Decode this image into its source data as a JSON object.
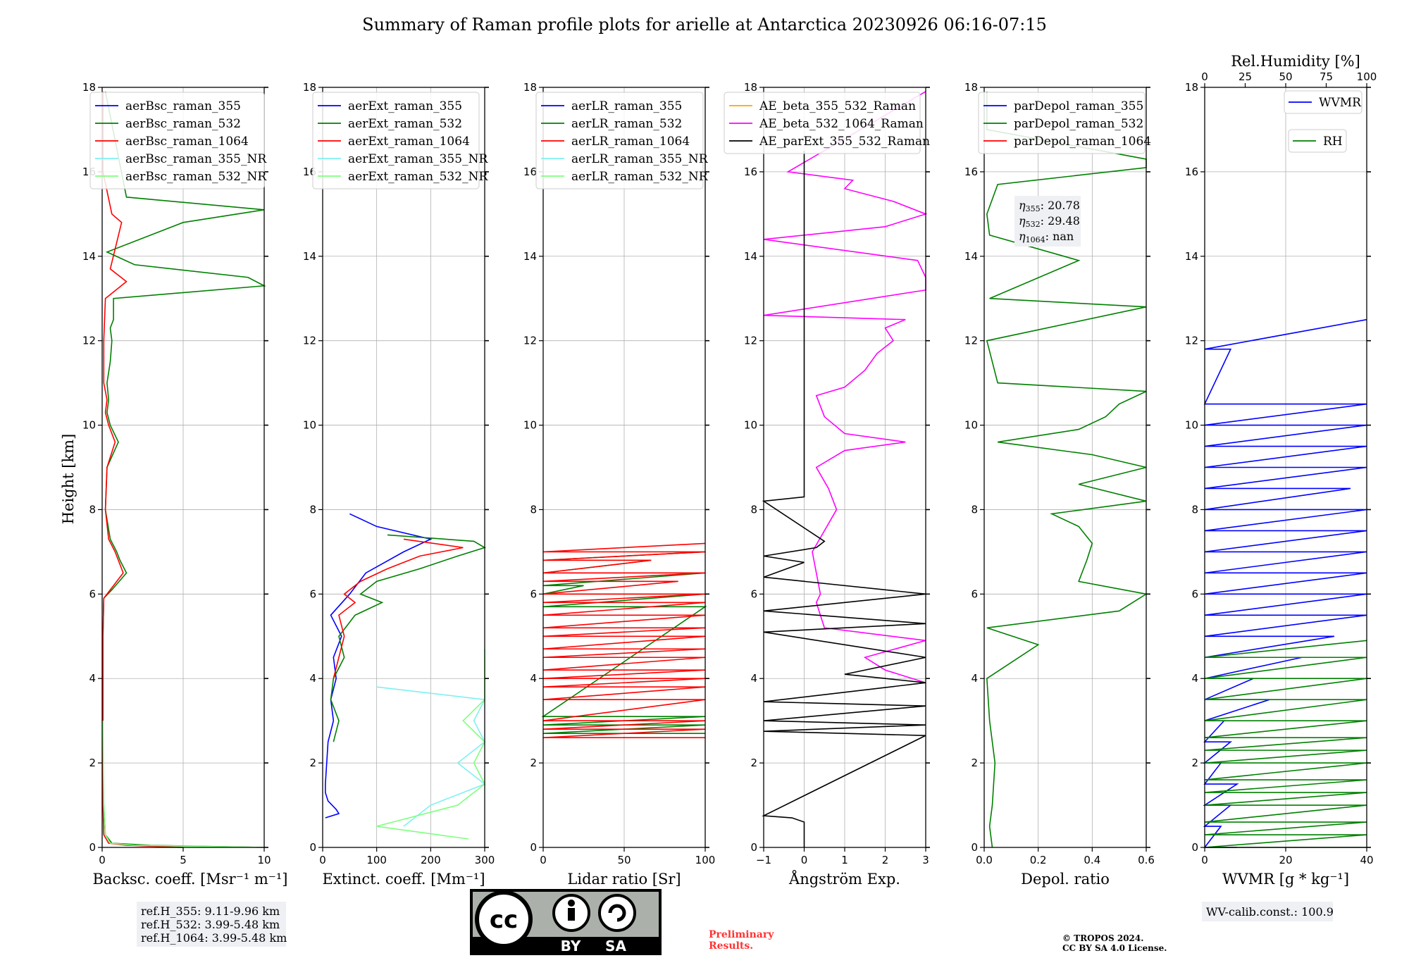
{
  "title": "Summary of Raman profile plots for arielle at Antarctica 20230926 06:16-07:15",
  "y_axis_label": "Height [km]",
  "colors": {
    "blue": "#0000ff",
    "green": "#008000",
    "red": "#ff0000",
    "cyan": "#7ff0f0",
    "lightgreen": "#7fff7f",
    "orange": "#ffa500",
    "magenta": "#ff00ff",
    "black": "#000000"
  },
  "chart_data": [
    {
      "type": "line",
      "xlabel": "Backsc. coeff. [Msr⁻¹ m⁻¹]",
      "xlim": [
        0,
        10
      ],
      "ylim": [
        0,
        18
      ],
      "xticks": [
        "0",
        "5",
        "10"
      ],
      "series": [
        {
          "name": "aerBsc_raman_355",
          "color": "#0000ff",
          "y": [],
          "x": []
        },
        {
          "name": "aerBsc_raman_532",
          "color": "#008000",
          "y": [
            0,
            0.05,
            0.1,
            0.3,
            1,
            2,
            3,
            4,
            5,
            5.9,
            6.1,
            6.5,
            6.8,
            7,
            7.3,
            8,
            9,
            9.6,
            10,
            10.3,
            10.6,
            11,
            11.5,
            12,
            12.3,
            12.5,
            13,
            13.3,
            13.5,
            13.8,
            14.1,
            14.8,
            15.1,
            15.4,
            17.9
          ],
          "x": [
            10,
            3,
            0.6,
            0.2,
            0.1,
            0.05,
            0.05,
            0.05,
            0.05,
            0.1,
            0.6,
            1.5,
            1.1,
            0.9,
            0.5,
            0.2,
            0.3,
            1,
            0.5,
            0.3,
            0.4,
            0.3,
            0.5,
            0.6,
            0.5,
            0.7,
            0.7,
            10,
            9,
            2,
            0.3,
            5,
            10,
            1.5,
            0.2
          ]
        },
        {
          "name": "aerBsc_raman_1064",
          "color": "#ff0000",
          "y": [
            0,
            0.05,
            0.1,
            0.3,
            1,
            2,
            3,
            4,
            5,
            5.9,
            6.1,
            6.5,
            6.8,
            7,
            7.3,
            8,
            9,
            9.6,
            10,
            10.3,
            10.6,
            11,
            12,
            13,
            13.4,
            13.7,
            14.8,
            15,
            16,
            17.9
          ],
          "x": [
            5,
            1.5,
            0.4,
            0.1,
            0.05,
            0.05,
            0.05,
            0.05,
            0.05,
            0.1,
            0.5,
            1.3,
            1,
            0.8,
            0.4,
            0.2,
            0.3,
            0.8,
            0.4,
            0.2,
            0.3,
            0.1,
            0.1,
            0.2,
            1.5,
            0.5,
            1.2,
            0.6,
            0.05,
            0.05
          ]
        },
        {
          "name": "aerBsc_raman_355_NR",
          "color": "#7ff0f0",
          "y": [],
          "x": []
        },
        {
          "name": "aerBsc_raman_532_NR",
          "color": "#7fff7f",
          "y": [
            0,
            0.05,
            0.1,
            0.3,
            1,
            3
          ],
          "x": [
            10,
            2,
            0.5,
            0.2,
            0.1,
            0.05
          ]
        }
      ]
    },
    {
      "type": "line",
      "xlabel": "Extinct. coeff. [Mm⁻¹]",
      "xlim": [
        0,
        300
      ],
      "ylim": [
        0,
        18
      ],
      "xticks": [
        "0",
        "100",
        "200",
        "300"
      ],
      "series": [
        {
          "name": "aerExt_raman_355",
          "color": "#0000ff",
          "y": [
            0.7,
            0.8,
            0.9,
            1.1,
            1.3,
            1.5,
            2.5,
            3,
            3.5,
            4,
            4.5,
            5,
            5.5,
            6,
            6.5,
            7,
            7.3,
            7.6,
            7.9
          ],
          "x": [
            5,
            30,
            25,
            10,
            5,
            5,
            10,
            20,
            15,
            25,
            20,
            35,
            15,
            50,
            80,
            150,
            200,
            100,
            50
          ]
        },
        {
          "name": "aerExt_raman_532",
          "color": "#008000",
          "y": [
            2.5,
            3,
            3.5,
            4,
            4.5,
            5,
            5.5,
            5.8,
            6,
            6.3,
            6.6,
            6.9,
            7.1,
            7.25,
            7.4
          ],
          "x": [
            20,
            30,
            15,
            20,
            40,
            30,
            60,
            110,
            70,
            100,
            180,
            250,
            300,
            280,
            120
          ]
        },
        {
          "name": "aerExt_raman_1064",
          "color": "#ff0000",
          "y": [
            4,
            4.5,
            5,
            5.5,
            5.8,
            6,
            6.3,
            6.6,
            6.9,
            7.1,
            7.3
          ],
          "x": [
            20,
            30,
            40,
            30,
            60,
            40,
            70,
            120,
            180,
            260,
            150
          ]
        },
        {
          "name": "aerExt_raman_355_NR",
          "color": "#7ff0f0",
          "y": [
            0.5,
            1,
            1.5,
            2,
            2.5,
            3,
            3.5,
            3.8
          ],
          "x": [
            150,
            200,
            300,
            250,
            300,
            280,
            300,
            100
          ]
        },
        {
          "name": "aerExt_raman_532_NR",
          "color": "#7fff7f",
          "y": [
            0.2,
            0.5,
            1,
            1.5,
            2,
            2.5,
            3,
            3.5,
            4.2,
            4.7
          ],
          "x": [
            270,
            100,
            250,
            300,
            280,
            300,
            260,
            300,
            300,
            300
          ]
        }
      ]
    },
    {
      "type": "line",
      "xlabel": "Lidar ratio [Sr]",
      "xlim": [
        0,
        120
      ],
      "ylim": [
        0,
        18
      ],
      "xticks": [
        "0",
        "50",
        "100"
      ],
      "series": [
        {
          "name": "aerLR_raman_355",
          "color": "#0000ff",
          "y": [],
          "x": []
        },
        {
          "name": "aerLR_raman_532",
          "color": "#008000",
          "y": [
            2.7,
            2.9,
            3.1,
            5.7,
            6,
            6.2,
            6.5,
            6.8,
            7
          ],
          "x": [
            120,
            120,
            120,
            120,
            120,
            30,
            120,
            80,
            120
          ]
        },
        {
          "name": "aerLR_raman_1064",
          "color": "#ff0000",
          "y": [
            2.6,
            2.8,
            3,
            3.5,
            3.8,
            4,
            4.2,
            4.5,
            4.7,
            5,
            5.2,
            5.5,
            5.8,
            6,
            6.3,
            6.5,
            6.8,
            7,
            7.2
          ],
          "x": [
            120,
            120,
            120,
            120,
            120,
            120,
            120,
            120,
            120,
            120,
            120,
            120,
            120,
            120,
            100,
            120,
            80,
            120,
            120
          ]
        },
        {
          "name": "aerLR_raman_355_NR",
          "color": "#7ff0f0",
          "y": [],
          "x": []
        },
        {
          "name": "aerLR_raman_532_NR",
          "color": "#7fff7f",
          "y": [],
          "x": []
        }
      ]
    },
    {
      "type": "line",
      "xlabel": "Ångström Exp.",
      "xlim": [
        -1,
        3
      ],
      "ylim": [
        0,
        18
      ],
      "xticks": [
        "−1",
        "0",
        "1",
        "2",
        "3"
      ],
      "series": [
        {
          "name": "AE_beta_355_532_Raman",
          "color": "#ffa500",
          "y": [],
          "x": []
        },
        {
          "name": "AE_beta_532_1064_Raman",
          "color": "#ff00ff",
          "y": [
            3.9,
            4.2,
            4.5,
            4.9,
            5.2,
            5.8,
            6.0,
            6.5,
            7,
            7.5,
            8,
            8.5,
            9,
            9.4,
            9.6,
            9.8,
            10.2,
            10.7,
            10.9,
            11.3,
            11.7,
            12,
            12.3,
            12.5,
            12.6,
            13.2,
            13.5,
            13.9,
            14.4,
            14.7,
            15,
            15.3,
            15.6,
            15.8,
            16,
            17.9
          ],
          "x": [
            3,
            2,
            1.5,
            3,
            0.5,
            0.3,
            0.4,
            0.3,
            0.2,
            0.5,
            0.8,
            0.6,
            0.3,
            1,
            2.5,
            1,
            0.5,
            0.3,
            1,
            1.5,
            1.8,
            2.2,
            2,
            2.5,
            -1,
            3,
            3,
            2.8,
            -1,
            2,
            3,
            2.2,
            1,
            1.2,
            -0.4,
            3
          ]
        },
        {
          "name": "AE_parExt_355_532_Raman",
          "color": "#000000",
          "y": [
            0,
            0.45,
            0.6,
            0.7,
            0.75,
            2.65,
            2.75,
            2.9,
            3.0,
            3.35,
            3.45,
            3.9,
            4.1,
            4.5,
            5.1,
            5.3,
            5.6,
            6.0,
            6.4,
            6.75,
            6.9,
            7.1,
            7.25,
            8.2,
            8.3,
            8.5,
            16.5
          ],
          "x": [
            0,
            0,
            0,
            -0.3,
            -1,
            3,
            -1,
            3,
            -1,
            3,
            -1,
            3,
            1,
            3,
            -1,
            3,
            -1,
            3,
            -1,
            0,
            -1,
            0.3,
            0.5,
            -1,
            0,
            0,
            0
          ]
        }
      ]
    },
    {
      "type": "line",
      "xlabel": "Depol. ratio",
      "xlim": [
        0.0,
        0.6
      ],
      "ylim": [
        0,
        18
      ],
      "xticks": [
        "0.0",
        "0.2",
        "0.4",
        "0.6"
      ],
      "annotation": {
        "eta355": ": 20.78",
        "eta532": ": 29.48",
        "eta1064": ": nan"
      },
      "series": [
        {
          "name": "parDepol_raman_355",
          "color": "#0000ff",
          "y": [],
          "x": []
        },
        {
          "name": "parDepol_raman_532",
          "color": "#008000",
          "y": [
            0,
            0.5,
            1,
            2,
            3,
            4,
            4.8,
            5.2,
            5.6,
            6,
            6.3,
            6.8,
            7.2,
            7.6,
            7.9,
            8.2,
            8.6,
            9,
            9.3,
            9.6,
            9.9,
            10.2,
            10.5,
            10.8,
            11,
            12,
            12.8,
            13,
            13.9,
            14.5,
            15,
            15.7,
            16.1,
            16.3,
            17,
            17.9
          ],
          "x": [
            0.03,
            0.02,
            0.03,
            0.04,
            0.02,
            0.01,
            0.2,
            0.01,
            0.5,
            0.6,
            0.35,
            0.38,
            0.4,
            0.35,
            0.25,
            0.6,
            0.35,
            0.6,
            0.4,
            0.05,
            0.35,
            0.45,
            0.5,
            0.6,
            0.05,
            0.01,
            0.6,
            0.02,
            0.35,
            0.02,
            0.01,
            0.05,
            0.6,
            0.6,
            0.01,
            0.01
          ]
        },
        {
          "name": "parDepol_raman_1064",
          "color": "#ff0000",
          "y": [],
          "x": []
        }
      ]
    },
    {
      "type": "line",
      "xlabel": "WVMR [g * kg⁻¹]",
      "xlim": [
        0,
        50
      ],
      "ylim": [
        0,
        18
      ],
      "xticks": [
        "0",
        "20",
        "40"
      ],
      "x2label": "Rel.Humidity [%]",
      "x2lim": [
        0,
        100
      ],
      "x2ticks": [
        "0",
        "25",
        "50",
        "75",
        "100"
      ],
      "series": [
        {
          "name": "WVMR",
          "color": "#0000ff",
          "y": [
            0,
            0.5,
            1,
            1.5,
            2,
            2.5,
            3,
            3.5,
            4,
            4.5,
            5,
            5.5,
            6,
            6.5,
            7,
            7.5,
            8,
            8.5,
            9,
            9.5,
            10,
            10.5,
            11.8,
            12.5
          ],
          "x": [
            10,
            5,
            8,
            10,
            5,
            8,
            6,
            20,
            15,
            30,
            40,
            50,
            50,
            50,
            50,
            50,
            50,
            45,
            50,
            50,
            50,
            50,
            8,
            50
          ]
        },
        {
          "name": "RH",
          "color": "#008000",
          "y": [
            0,
            0.3,
            0.6,
            1,
            1.3,
            1.6,
            2,
            2.3,
            2.6,
            3,
            3.5,
            4,
            4.5,
            4.9
          ],
          "x": [
            70,
            60,
            50,
            100,
            80,
            100,
            100,
            90,
            100,
            100,
            80,
            100,
            100,
            100
          ]
        }
      ]
    }
  ],
  "footer": {
    "refh_355": "ref.H_355: 9.11-9.96 km",
    "refh_532": "ref.H_532: 3.99-5.48 km",
    "refh_1064": "ref.H_1064: 3.99-5.48 km",
    "cc_label": "cc",
    "cc_by": "BY",
    "cc_sa": "SA",
    "preliminary_1": "Preliminary",
    "preliminary_2": "Results.",
    "copyright_1": "© TROPOS 2024.",
    "copyright_2": "CC BY SA 4.0 License.",
    "wv_calib": "WV-calib.const.: 100.9"
  }
}
